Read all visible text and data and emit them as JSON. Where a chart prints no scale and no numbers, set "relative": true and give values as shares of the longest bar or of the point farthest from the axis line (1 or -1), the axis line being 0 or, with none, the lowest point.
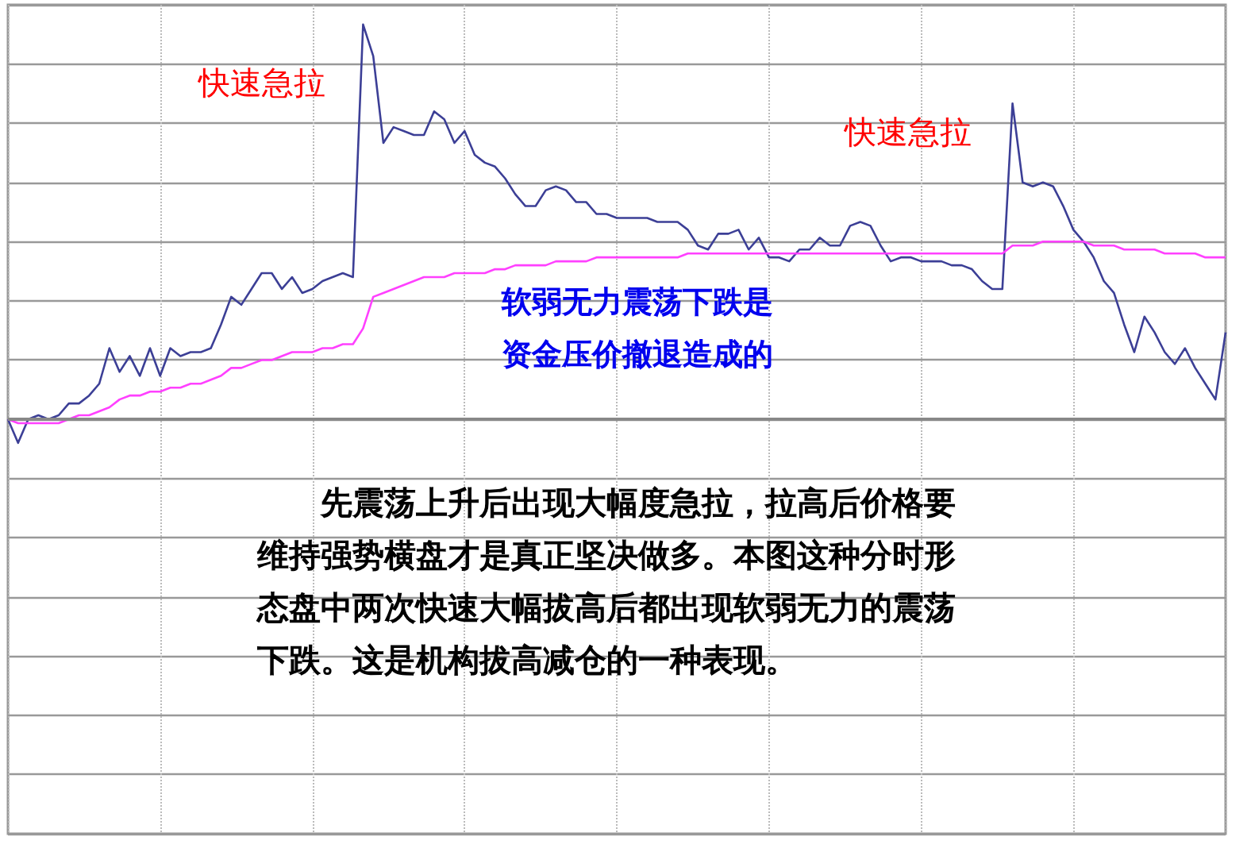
{
  "chart_data": {
    "type": "line",
    "relative": true,
    "grid": true,
    "marker": "none",
    "categories": [
      null,
      null,
      null,
      null,
      null,
      null,
      null,
      null,
      null,
      null,
      null,
      null,
      null,
      null,
      null,
      null,
      null,
      null,
      null,
      null,
      null,
      null,
      null,
      null,
      null,
      null,
      null,
      null,
      null,
      null,
      null,
      null,
      null,
      null,
      null,
      null,
      null,
      null,
      null,
      null,
      null,
      null,
      null,
      null,
      null,
      null,
      null,
      null,
      null,
      null,
      null,
      null,
      null,
      null,
      null,
      null,
      null,
      null,
      null,
      null,
      null,
      null,
      null,
      null,
      null,
      null,
      null,
      null,
      null,
      null,
      null,
      null,
      null,
      null,
      null,
      null,
      null,
      null,
      null,
      null,
      null,
      null,
      null,
      null,
      null,
      null,
      null,
      null,
      null,
      null,
      null,
      null,
      null,
      null,
      null,
      null,
      null,
      null,
      null,
      null,
      null,
      null,
      null,
      null,
      null,
      null,
      null,
      null,
      null,
      null,
      null,
      null,
      null,
      null,
      null,
      null,
      null,
      null,
      null,
      null,
      null
    ],
    "series": [
      {
        "color": "#3c3f96",
        "values": [
          0,
          -0.06,
          0,
          0.01,
          0,
          0.01,
          0.04,
          0.04,
          0.06,
          0.09,
          0.18,
          0.12,
          0.16,
          0.11,
          0.18,
          0.11,
          0.18,
          0.16,
          0.17,
          0.17,
          0.18,
          0.24,
          0.31,
          0.29,
          0.33,
          0.37,
          0.37,
          0.33,
          0.36,
          0.32,
          0.33,
          0.35,
          0.36,
          0.37,
          0.36,
          1,
          0.92,
          0.7,
          0.74,
          0.73,
          0.72,
          0.72,
          0.78,
          0.76,
          0.7,
          0.73,
          0.67,
          0.65,
          0.64,
          0.61,
          0.57,
          0.54,
          0.54,
          0.58,
          0.59,
          0.58,
          0.55,
          0.55,
          0.52,
          0.52,
          0.51,
          0.51,
          0.51,
          0.51,
          0.5,
          0.5,
          0.5,
          0.48,
          0.44,
          0.43,
          0.47,
          0.47,
          0.48,
          0.43,
          0.46,
          0.41,
          0.41,
          0.4,
          0.43,
          0.43,
          0.46,
          0.44,
          0.44,
          0.49,
          0.5,
          0.49,
          0.44,
          0.4,
          0.41,
          0.41,
          0.4,
          0.4,
          0.4,
          0.39,
          0.39,
          0.38,
          0.35,
          0.33,
          0.33,
          0.8,
          0.6,
          0.59,
          0.6,
          0.59,
          0.54,
          0.48,
          0.45,
          0.41,
          0.35,
          0.32,
          0.24,
          0.17,
          0.26,
          0.22,
          0.17,
          0.14,
          0.18,
          0.13,
          0.09,
          0.05,
          0.22
        ]
      },
      {
        "color": "#ff40ff",
        "values": [
          0,
          -0.01,
          -0.01,
          -0.01,
          -0.01,
          -0.01,
          0,
          0.01,
          0.01,
          0.02,
          0.03,
          0.05,
          0.06,
          0.06,
          0.07,
          0.07,
          0.08,
          0.08,
          0.09,
          0.09,
          0.1,
          0.11,
          0.13,
          0.13,
          0.14,
          0.15,
          0.15,
          0.16,
          0.17,
          0.17,
          0.17,
          0.18,
          0.18,
          0.19,
          0.19,
          0.23,
          0.31,
          0.32,
          0.33,
          0.34,
          0.35,
          0.36,
          0.36,
          0.36,
          0.37,
          0.37,
          0.37,
          0.37,
          0.38,
          0.38,
          0.39,
          0.39,
          0.39,
          0.39,
          0.4,
          0.4,
          0.4,
          0.4,
          0.41,
          0.41,
          0.41,
          0.41,
          0.41,
          0.41,
          0.41,
          0.41,
          0.41,
          0.42,
          0.42,
          0.42,
          0.42,
          0.42,
          0.42,
          0.42,
          0.42,
          0.42,
          0.42,
          0.42,
          0.42,
          0.42,
          0.42,
          0.42,
          0.42,
          0.42,
          0.42,
          0.42,
          0.42,
          0.42,
          0.42,
          0.42,
          0.42,
          0.42,
          0.42,
          0.42,
          0.42,
          0.42,
          0.42,
          0.42,
          0.42,
          0.44,
          0.44,
          0.44,
          0.45,
          0.45,
          0.45,
          0.45,
          0.45,
          0.44,
          0.44,
          0.44,
          0.43,
          0.43,
          0.43,
          0.43,
          0.42,
          0.42,
          0.42,
          0.42,
          0.41,
          0.41,
          0.41
        ]
      }
    ],
    "annotations": [
      "快速急拉",
      "快速急拉",
      "软弱无力震荡下跌是资金压价撤退造成的",
      "　　先震荡上升后出现大幅度急拉，拉高后价格要维持强势横盘才是真正坚决做多。本图这种分时形态盘中两次快速大幅拔高后都出现软弱无力的震荡下跌。这是机构拔高减仓的一种表现。"
    ]
  }
}
